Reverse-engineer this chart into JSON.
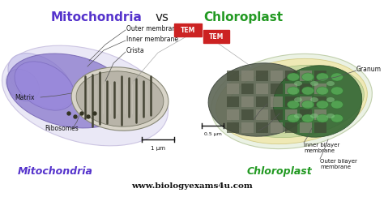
{
  "title_left": "Mitochondria",
  "title_right": "Chloroplast",
  "title_vs": "vs",
  "title_left_color": "#5533cc",
  "title_right_color": "#229922",
  "title_vs_color": "#222222",
  "title_fontsize": 11,
  "bg_color": "#ffffff",
  "label_left": "Mitochondria",
  "label_right": "Chloroplast",
  "label_left_color": "#5533cc",
  "label_right_color": "#229922",
  "label_fontsize": 9,
  "website": "www.biologyexams4u.com",
  "website_fontsize": 7.5,
  "tem_box_color": "#cc2222",
  "tem_text_color": "#ffffff"
}
